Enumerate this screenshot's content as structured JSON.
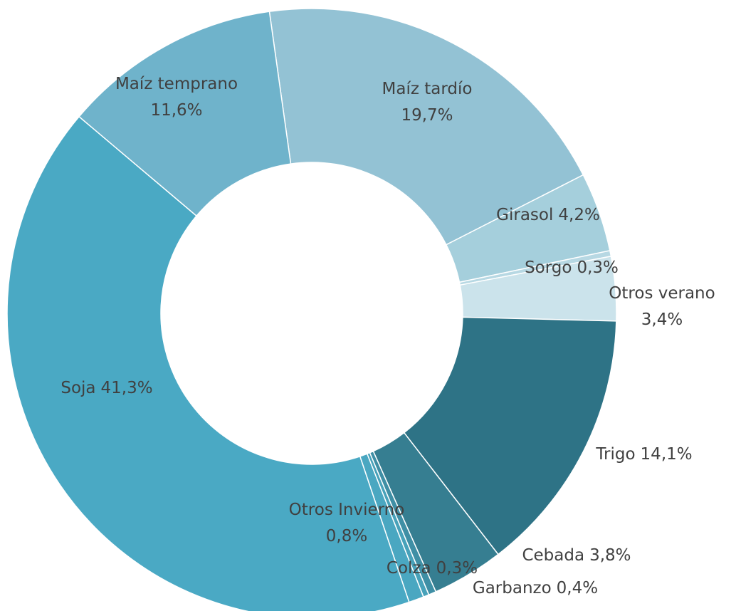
{
  "chart_data": {
    "type": "donut",
    "categories": [
      "Maíz tardío",
      "Girasol",
      "Sorgo",
      "Otros verano",
      "Trigo",
      "Cebada",
      "Garbanzo",
      "Colza",
      "Otros Invierno",
      "Soja",
      "Maíz temprano"
    ],
    "values": [
      19.7,
      4.2,
      0.3,
      3.4,
      14.1,
      3.8,
      0.4,
      0.3,
      0.8,
      41.3,
      11.6
    ],
    "value_labels": [
      "19,7%",
      "4,2%",
      "0,3%",
      "3,4%",
      "14,1%",
      "3,8%",
      "0,4%",
      "0,3%",
      "0,8%",
      "41,3%",
      "11,6%"
    ],
    "colors": [
      "#93c2d4",
      "#a5cfdc",
      "#b7d8e3",
      "#cbe3eb",
      "#2e7386",
      "#367e91",
      "#3f8fa5",
      "#48a2ba",
      "#4aa7c1",
      "#4aa9c4",
      "#6fb3cb"
    ]
  }
}
